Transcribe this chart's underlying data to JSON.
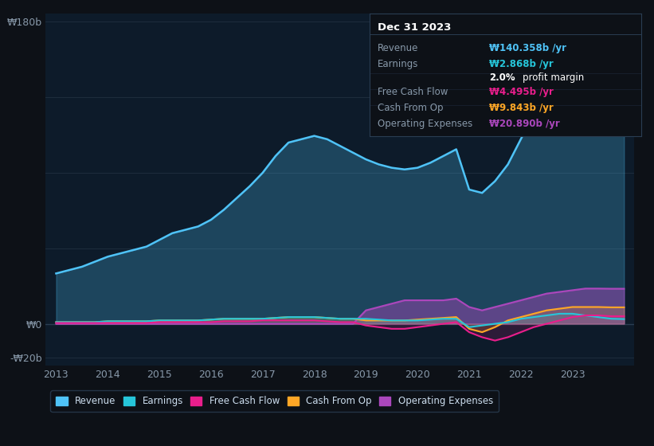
{
  "bg_color": "#0d1117",
  "plot_bg_color": "#0d1b2a",
  "legend": [
    "Revenue",
    "Earnings",
    "Free Cash Flow",
    "Cash From Op",
    "Operating Expenses"
  ],
  "legend_colors": [
    "#4fc3f7",
    "#26c6da",
    "#e91e8c",
    "#ffa726",
    "#ab47bc"
  ],
  "years": [
    2013.0,
    2013.25,
    2013.5,
    2013.75,
    2014.0,
    2014.25,
    2014.5,
    2014.75,
    2015.0,
    2015.25,
    2015.5,
    2015.75,
    2016.0,
    2016.25,
    2016.5,
    2016.75,
    2017.0,
    2017.25,
    2017.5,
    2017.75,
    2018.0,
    2018.25,
    2018.5,
    2018.75,
    2019.0,
    2019.25,
    2019.5,
    2019.75,
    2020.0,
    2020.25,
    2020.5,
    2020.75,
    2021.0,
    2021.25,
    2021.5,
    2021.75,
    2022.0,
    2022.25,
    2022.5,
    2022.75,
    2023.0,
    2023.25,
    2023.5,
    2023.75,
    2024.0
  ],
  "revenue": [
    30,
    32,
    34,
    37,
    40,
    42,
    44,
    46,
    50,
    54,
    56,
    58,
    62,
    68,
    75,
    82,
    90,
    100,
    108,
    110,
    112,
    110,
    106,
    102,
    98,
    95,
    93,
    92,
    93,
    96,
    100,
    104,
    80,
    78,
    85,
    95,
    110,
    125,
    140,
    155,
    167,
    158,
    148,
    142,
    140
  ],
  "earnings": [
    1,
    1,
    1,
    1,
    1.5,
    1.5,
    1.5,
    1.5,
    2,
    2,
    2,
    2,
    2.5,
    3,
    3,
    3,
    3,
    3.5,
    4,
    4,
    4,
    3.5,
    3,
    3,
    3,
    2.5,
    2,
    2,
    2,
    2.5,
    3,
    3,
    -2,
    -1,
    0,
    1,
    3,
    4,
    5,
    6,
    6,
    5,
    4,
    3,
    2.8
  ],
  "free_cash_flow": [
    0.5,
    0.5,
    0.5,
    0.5,
    0.5,
    0.5,
    0.5,
    0.5,
    1,
    1,
    1,
    1,
    1,
    1.5,
    1.5,
    1.5,
    2,
    2,
    2,
    2,
    2,
    1.5,
    1,
    1,
    -1,
    -2,
    -3,
    -3,
    -2,
    -1,
    0,
    1,
    -5,
    -8,
    -10,
    -8,
    -5,
    -2,
    0,
    2,
    4,
    5,
    5,
    4.5,
    4.5
  ],
  "cash_from_op": [
    1,
    1,
    1,
    1,
    1.5,
    1.5,
    1.5,
    1.5,
    2,
    2,
    2,
    2,
    2.5,
    3,
    3,
    3,
    3,
    3.5,
    4,
    4,
    4,
    3.5,
    3,
    3,
    2,
    2,
    2,
    2,
    2.5,
    3,
    3.5,
    4,
    -3,
    -5,
    -2,
    2,
    4,
    6,
    8,
    9,
    10,
    10,
    10,
    9.8,
    9.8
  ],
  "operating_expenses": [
    0,
    0,
    0,
    0,
    0,
    0,
    0,
    0,
    0,
    0,
    0,
    0,
    0,
    0,
    0,
    0,
    0,
    0,
    0,
    0,
    0,
    0,
    0,
    0,
    8,
    10,
    12,
    14,
    14,
    14,
    14,
    15,
    10,
    8,
    10,
    12,
    14,
    16,
    18,
    19,
    20,
    21,
    21,
    20.9,
    20.9
  ],
  "ylim": [
    -25,
    185
  ],
  "xlim": [
    2012.8,
    2024.2
  ],
  "xticks": [
    2013,
    2014,
    2015,
    2016,
    2017,
    2018,
    2019,
    2020,
    2021,
    2022,
    2023
  ],
  "ytick_labels": {
    "-20": "-₩20b",
    "0": "₩0",
    "180": "₩180b"
  },
  "grid_color": "#1e2d3d",
  "line_colors": {
    "revenue": "#4fc3f7",
    "earnings": "#26c6da",
    "free_cash_flow": "#e91e8c",
    "cash_from_op": "#ffa726",
    "operating_expenses": "#ab47bc"
  },
  "tooltip": {
    "title": "Dec 31 2023",
    "rows": [
      {
        "label": "Revenue",
        "value": "₩140.358b /yr",
        "color": "#4fc3f7"
      },
      {
        "label": "Earnings",
        "value": "₩2.868b /yr",
        "color": "#26c6da"
      },
      {
        "label": "",
        "value": "2.0% profit margin",
        "color": "#ffffff"
      },
      {
        "label": "Free Cash Flow",
        "value": "₩4.495b /yr",
        "color": "#e91e8c"
      },
      {
        "label": "Cash From Op",
        "value": "₩9.843b /yr",
        "color": "#ffa726"
      },
      {
        "label": "Operating Expenses",
        "value": "₩20.890b /yr",
        "color": "#ab47bc"
      }
    ]
  }
}
